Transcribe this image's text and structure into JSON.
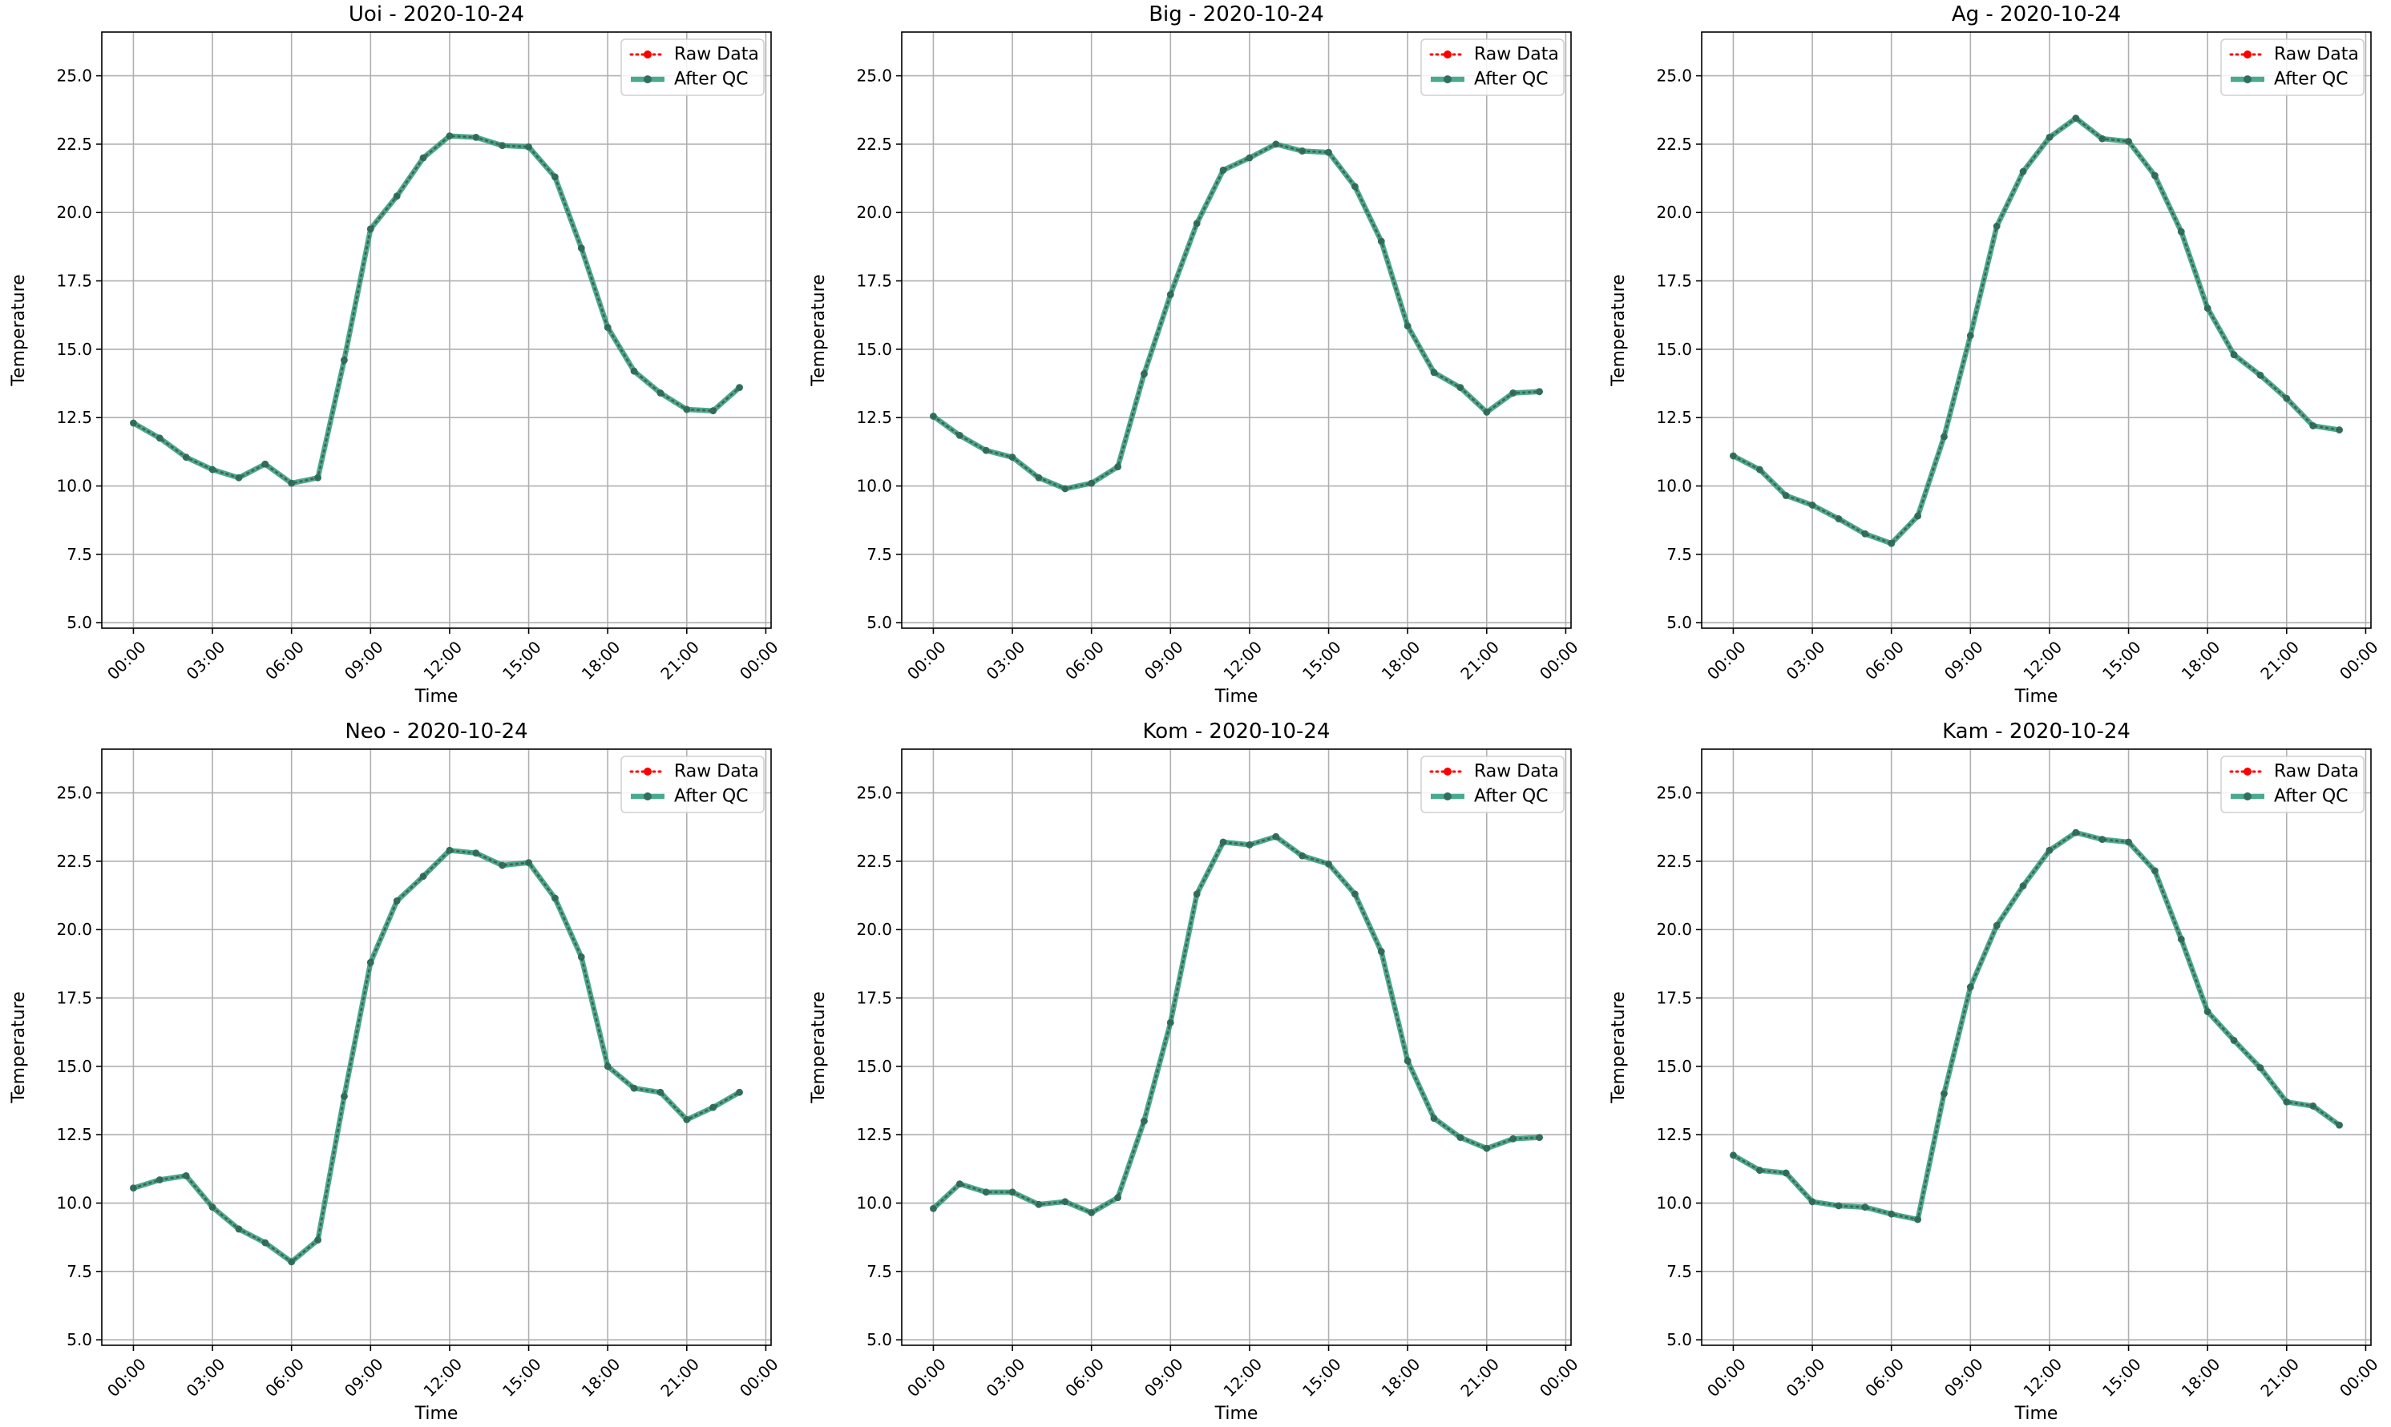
{
  "chart_data": [
    {
      "type": "line",
      "title": "Uoi - 2020-10-24",
      "xlabel": "Time",
      "ylabel": "Temperature",
      "xticks": [
        "00:00",
        "03:00",
        "06:00",
        "09:00",
        "12:00",
        "15:00",
        "18:00",
        "21:00",
        "00:00"
      ],
      "yticks": [
        "5.0",
        "7.5",
        "10.0",
        "12.5",
        "15.0",
        "17.5",
        "20.0",
        "22.5",
        "25.0"
      ],
      "ylim": [
        4.8,
        26.6
      ],
      "xlim_hours": [
        -1.2,
        24.2
      ],
      "grid": true,
      "legend": "top-right",
      "x_hours": [
        0,
        1,
        2,
        3,
        4,
        5,
        6,
        7,
        8,
        9,
        10,
        11,
        12,
        13,
        14,
        15,
        16,
        17,
        18,
        19,
        20,
        21,
        22,
        23
      ],
      "series": [
        {
          "name": "Raw Data",
          "values": [
            12.3,
            11.75,
            11.05,
            10.6,
            10.3,
            10.8,
            10.1,
            10.3,
            14.6,
            19.4,
            20.6,
            22.0,
            22.8,
            22.75,
            22.45,
            22.4,
            21.3,
            18.7,
            15.8,
            14.2,
            13.4,
            12.8,
            12.75,
            13.6
          ]
        },
        {
          "name": "After QC",
          "values": [
            12.3,
            11.75,
            11.05,
            10.6,
            10.3,
            10.8,
            10.1,
            10.3,
            14.6,
            19.4,
            20.6,
            22.0,
            22.8,
            22.75,
            22.45,
            22.4,
            21.3,
            18.7,
            15.8,
            14.2,
            13.4,
            12.8,
            12.75,
            13.6
          ]
        }
      ]
    },
    {
      "type": "line",
      "title": "Big - 2020-10-24",
      "xlabel": "Time",
      "ylabel": "Temperature",
      "xticks": [
        "00:00",
        "03:00",
        "06:00",
        "09:00",
        "12:00",
        "15:00",
        "18:00",
        "21:00",
        "00:00"
      ],
      "yticks": [
        "5.0",
        "7.5",
        "10.0",
        "12.5",
        "15.0",
        "17.5",
        "20.0",
        "22.5",
        "25.0"
      ],
      "ylim": [
        4.8,
        26.6
      ],
      "xlim_hours": [
        -1.2,
        24.2
      ],
      "grid": true,
      "legend": "top-right",
      "x_hours": [
        0,
        1,
        2,
        3,
        4,
        5,
        6,
        7,
        8,
        9,
        10,
        11,
        12,
        13,
        14,
        15,
        16,
        17,
        18,
        19,
        20,
        21,
        22,
        23
      ],
      "series": [
        {
          "name": "Raw Data",
          "values": [
            12.55,
            11.85,
            11.3,
            11.05,
            10.3,
            9.9,
            10.1,
            10.7,
            14.1,
            17.0,
            19.6,
            21.55,
            22.0,
            22.5,
            22.25,
            22.2,
            20.95,
            18.95,
            15.85,
            14.15,
            13.6,
            12.7,
            13.4,
            13.45
          ]
        },
        {
          "name": "After QC",
          "values": [
            12.55,
            11.85,
            11.3,
            11.05,
            10.3,
            9.9,
            10.1,
            10.7,
            14.1,
            17.0,
            19.6,
            21.55,
            22.0,
            22.5,
            22.25,
            22.2,
            20.95,
            18.95,
            15.85,
            14.15,
            13.6,
            12.7,
            13.4,
            13.45
          ]
        }
      ]
    },
    {
      "type": "line",
      "title": "Ag - 2020-10-24",
      "xlabel": "Time",
      "ylabel": "Temperature",
      "xticks": [
        "00:00",
        "03:00",
        "06:00",
        "09:00",
        "12:00",
        "15:00",
        "18:00",
        "21:00",
        "00:00"
      ],
      "yticks": [
        "5.0",
        "7.5",
        "10.0",
        "12.5",
        "15.0",
        "17.5",
        "20.0",
        "22.5",
        "25.0"
      ],
      "ylim": [
        4.8,
        26.6
      ],
      "xlim_hours": [
        -1.2,
        24.2
      ],
      "grid": true,
      "legend": "top-right",
      "x_hours": [
        0,
        1,
        2,
        3,
        4,
        5,
        6,
        7,
        8,
        9,
        10,
        11,
        12,
        13,
        14,
        15,
        16,
        17,
        18,
        19,
        20,
        21,
        22,
        23
      ],
      "series": [
        {
          "name": "Raw Data",
          "values": [
            11.1,
            10.6,
            9.65,
            9.3,
            8.8,
            8.25,
            7.9,
            8.9,
            11.8,
            15.5,
            19.5,
            21.5,
            22.75,
            23.45,
            22.7,
            22.6,
            21.35,
            19.3,
            16.5,
            14.8,
            14.05,
            13.2,
            12.2,
            12.05
          ]
        },
        {
          "name": "After QC",
          "values": [
            11.1,
            10.6,
            9.65,
            9.3,
            8.8,
            8.25,
            7.9,
            8.9,
            11.8,
            15.5,
            19.5,
            21.5,
            22.75,
            23.45,
            22.7,
            22.6,
            21.35,
            19.3,
            16.5,
            14.8,
            14.05,
            13.2,
            12.2,
            12.05
          ]
        }
      ]
    },
    {
      "type": "line",
      "title": "Neo - 2020-10-24",
      "xlabel": "Time",
      "ylabel": "Temperature",
      "xticks": [
        "00:00",
        "03:00",
        "06:00",
        "09:00",
        "12:00",
        "15:00",
        "18:00",
        "21:00",
        "00:00"
      ],
      "yticks": [
        "5.0",
        "7.5",
        "10.0",
        "12.5",
        "15.0",
        "17.5",
        "20.0",
        "22.5",
        "25.0"
      ],
      "ylim": [
        4.8,
        26.6
      ],
      "xlim_hours": [
        -1.2,
        24.2
      ],
      "grid": true,
      "legend": "top-right",
      "x_hours": [
        0,
        1,
        2,
        3,
        4,
        5,
        6,
        7,
        8,
        9,
        10,
        11,
        12,
        13,
        14,
        15,
        16,
        17,
        18,
        19,
        20,
        21,
        22,
        23
      ],
      "series": [
        {
          "name": "Raw Data",
          "values": [
            10.55,
            10.85,
            11.0,
            9.85,
            9.05,
            8.55,
            7.85,
            8.65,
            13.9,
            18.8,
            21.05,
            21.95,
            22.9,
            22.8,
            22.35,
            22.45,
            21.15,
            19.0,
            15.0,
            14.2,
            14.05,
            13.05,
            13.5,
            14.05
          ]
        },
        {
          "name": "After QC",
          "values": [
            10.55,
            10.85,
            11.0,
            9.85,
            9.05,
            8.55,
            7.85,
            8.65,
            13.9,
            18.8,
            21.05,
            21.95,
            22.9,
            22.8,
            22.35,
            22.45,
            21.15,
            19.0,
            15.0,
            14.2,
            14.05,
            13.05,
            13.5,
            14.05
          ]
        }
      ]
    },
    {
      "type": "line",
      "title": "Kom - 2020-10-24",
      "xlabel": "Time",
      "ylabel": "Temperature",
      "xticks": [
        "00:00",
        "03:00",
        "06:00",
        "09:00",
        "12:00",
        "15:00",
        "18:00",
        "21:00",
        "00:00"
      ],
      "yticks": [
        "5.0",
        "7.5",
        "10.0",
        "12.5",
        "15.0",
        "17.5",
        "20.0",
        "22.5",
        "25.0"
      ],
      "ylim": [
        4.8,
        26.6
      ],
      "xlim_hours": [
        -1.2,
        24.2
      ],
      "grid": true,
      "legend": "top-right",
      "x_hours": [
        0,
        1,
        2,
        3,
        4,
        5,
        6,
        7,
        8,
        9,
        10,
        11,
        12,
        13,
        14,
        15,
        16,
        17,
        18,
        19,
        20,
        21,
        22,
        23
      ],
      "series": [
        {
          "name": "Raw Data",
          "values": [
            9.8,
            10.7,
            10.4,
            10.4,
            9.95,
            10.05,
            9.65,
            10.2,
            13.0,
            16.6,
            21.3,
            23.2,
            23.1,
            23.4,
            22.7,
            22.4,
            21.3,
            19.2,
            15.2,
            13.1,
            12.4,
            12.0,
            12.35,
            12.4
          ]
        },
        {
          "name": "After QC",
          "values": [
            9.8,
            10.7,
            10.4,
            10.4,
            9.95,
            10.05,
            9.65,
            10.2,
            13.0,
            16.6,
            21.3,
            23.2,
            23.1,
            23.4,
            22.7,
            22.4,
            21.3,
            19.2,
            15.2,
            13.1,
            12.4,
            12.0,
            12.35,
            12.4
          ]
        }
      ]
    },
    {
      "type": "line",
      "title": "Kam - 2020-10-24",
      "xlabel": "Time",
      "ylabel": "Temperature",
      "xticks": [
        "00:00",
        "03:00",
        "06:00",
        "09:00",
        "12:00",
        "15:00",
        "18:00",
        "21:00",
        "00:00"
      ],
      "yticks": [
        "5.0",
        "7.5",
        "10.0",
        "12.5",
        "15.0",
        "17.5",
        "20.0",
        "22.5",
        "25.0"
      ],
      "ylim": [
        4.8,
        26.6
      ],
      "xlim_hours": [
        -1.2,
        24.2
      ],
      "grid": true,
      "legend": "top-right",
      "x_hours": [
        0,
        1,
        2,
        3,
        4,
        5,
        6,
        7,
        8,
        9,
        10,
        11,
        12,
        13,
        14,
        15,
        16,
        17,
        18,
        19,
        20,
        21,
        22,
        23
      ],
      "series": [
        {
          "name": "Raw Data",
          "values": [
            11.75,
            11.2,
            11.1,
            10.05,
            9.9,
            9.85,
            9.6,
            9.4,
            14.0,
            17.9,
            20.15,
            21.6,
            22.9,
            23.55,
            23.3,
            23.2,
            22.15,
            19.65,
            17.0,
            15.95,
            14.95,
            13.7,
            13.55,
            12.85
          ]
        },
        {
          "name": "After QC",
          "values": [
            11.75,
            11.2,
            11.1,
            10.05,
            9.9,
            9.85,
            9.6,
            9.4,
            14.0,
            17.9,
            20.15,
            21.6,
            22.9,
            23.55,
            23.3,
            23.2,
            22.15,
            19.65,
            17.0,
            15.95,
            14.95,
            13.7,
            13.55,
            12.85
          ]
        }
      ]
    }
  ],
  "colors": {
    "raw": "#ff0000",
    "qc": "#2a9a7b",
    "qc_marker": "#2f6f5e",
    "grid": "#b0b0b0",
    "axis": "#000000",
    "legend_border": "#d0d0d0"
  }
}
